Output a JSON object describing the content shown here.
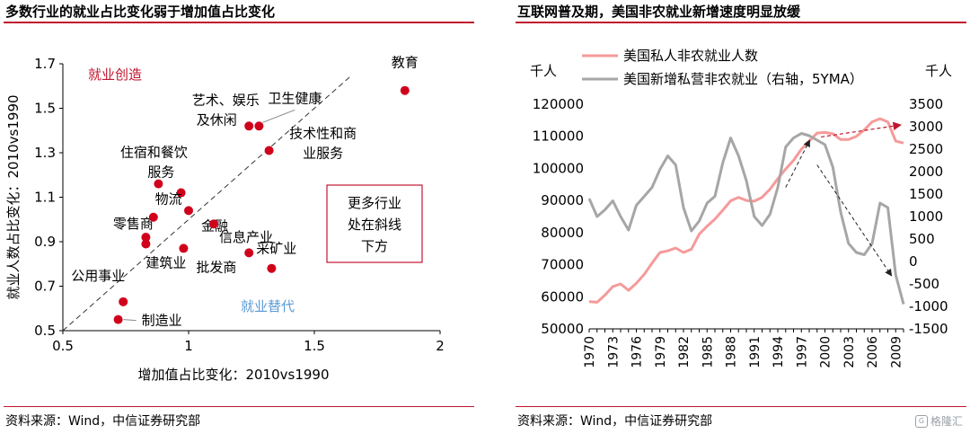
{
  "left_panel": {
    "title": "多数行业的就业占比变化弱于增加值占比变化",
    "source": "资料来源：Wind，中信证券研究部"
  },
  "right_panel": {
    "title": "互联网普及期，美国非农就业新增速度明显放缓",
    "source": "资料来源：Wind，中信证券研究部"
  },
  "watermark": {
    "text": "格隆汇",
    "icon": "gelonghui-logo-icon"
  },
  "colors": {
    "accent": "#c0162f",
    "point": "#d0021b",
    "pink": "#f59a9a",
    "gray": "#a6a6a6"
  },
  "chart_data": [
    {
      "type": "scatter",
      "xlabel": "增加值占比变化：2010vs1990",
      "ylabel": "就业人数占比变化：2010vs1990",
      "xlim": [
        0.5,
        2
      ],
      "ylim": [
        0.5,
        1.7
      ],
      "xticks": [
        "0.5",
        "1",
        "1.5",
        "2"
      ],
      "yticks": [
        "0.5",
        "0.7",
        "0.9",
        "1.1",
        "1.3",
        "1.5",
        "1.7"
      ],
      "reference_line": "y = x (dashed)",
      "points": [
        {
          "label": "教育",
          "x": 1.86,
          "y": 1.58
        },
        {
          "label": "卫生健康",
          "x": 1.28,
          "y": 1.42
        },
        {
          "label": "艺术、娱乐及休闲",
          "x": 1.24,
          "y": 1.42
        },
        {
          "label": "技术性和商业服务",
          "x": 1.32,
          "y": 1.31
        },
        {
          "label": "住宿和餐饮服务",
          "x": 0.88,
          "y": 1.16
        },
        {
          "label": "物流",
          "x": 0.97,
          "y": 1.12
        },
        {
          "label": "金融",
          "x": 1.0,
          "y": 1.04
        },
        {
          "label": "零售商",
          "x": 0.83,
          "y": 0.92
        },
        {
          "label": "建筑业",
          "x": 0.83,
          "y": 0.89
        },
        {
          "label": "批发商",
          "x": 0.98,
          "y": 0.87
        },
        {
          "label": "信息产业",
          "x": 1.1,
          "y": 0.98
        },
        {
          "label": "采矿业",
          "x": 1.24,
          "y": 0.85
        },
        {
          "label": "",
          "x": 1.33,
          "y": 0.78
        },
        {
          "label": "公用事业",
          "x": 0.74,
          "y": 0.63
        },
        {
          "label": "制造业",
          "x": 0.72,
          "y": 0.55
        },
        {
          "label": "",
          "x": 0.86,
          "y": 1.01
        }
      ],
      "annotations": {
        "upper": "就业创造",
        "lower": "就业替代",
        "box": [
          "更多行业",
          "处在斜线",
          "下方"
        ]
      }
    },
    {
      "type": "line",
      "left_unit": "千人",
      "right_unit": "千人",
      "ylim_left": [
        50000,
        120000
      ],
      "ylim_right": [
        -1500,
        3500
      ],
      "yticks_left": [
        "50000",
        "60000",
        "70000",
        "80000",
        "90000",
        "100000",
        "110000",
        "120000"
      ],
      "yticks_right": [
        "-1500",
        "-1000",
        "-500",
        "0",
        "500",
        "1000",
        "1500",
        "2000",
        "2500",
        "3000",
        "3500"
      ],
      "xticks": [
        "1970",
        "1973",
        "1976",
        "1979",
        "1982",
        "1985",
        "1988",
        "1991",
        "1994",
        "1997",
        "2000",
        "2003",
        "2006",
        "2009"
      ],
      "xlim": [
        1970,
        2010
      ],
      "series": [
        {
          "name": "美国私人非农就业人数",
          "axis": "left",
          "color": "#f59a9a",
          "x": [
            1970,
            1971,
            1972,
            1973,
            1974,
            1975,
            1976,
            1977,
            1978,
            1979,
            1980,
            1981,
            1982,
            1983,
            1984,
            1985,
            1986,
            1987,
            1988,
            1989,
            1990,
            1991,
            1992,
            1993,
            1994,
            1995,
            1996,
            1997,
            1998,
            1999,
            2000,
            2001,
            2002,
            2003,
            2004,
            2005,
            2006,
            2007,
            2008,
            2009,
            2010
          ],
          "values": [
            58500,
            58300,
            60500,
            63200,
            64000,
            62000,
            64200,
            67000,
            70500,
            73800,
            74300,
            75200,
            73800,
            74800,
            79500,
            82000,
            84200,
            87000,
            89900,
            91000,
            90000,
            89800,
            91000,
            93500,
            96800,
            99800,
            102500,
            106000,
            108500,
            111000,
            111200,
            110800,
            109000,
            109000,
            110000,
            112000,
            114500,
            115500,
            114500,
            108500,
            107900
          ]
        },
        {
          "name": "美国新增私营非农就业（右轴，5YMA）",
          "axis": "right",
          "color": "#a6a6a6",
          "x": [
            1970,
            1971,
            1972,
            1973,
            1974,
            1975,
            1976,
            1977,
            1978,
            1979,
            1980,
            1981,
            1982,
            1983,
            1984,
            1985,
            1986,
            1987,
            1988,
            1989,
            1990,
            1991,
            1992,
            1993,
            1994,
            1995,
            1996,
            1997,
            1998,
            1999,
            2000,
            2001,
            2002,
            2003,
            2004,
            2005,
            2006,
            2007,
            2008,
            2009,
            2010
          ],
          "values": [
            1400,
            1000,
            1150,
            1350,
            1000,
            700,
            1250,
            1450,
            1650,
            2050,
            2350,
            2150,
            1200,
            680,
            900,
            1300,
            1450,
            2200,
            2750,
            2350,
            1800,
            1000,
            800,
            1050,
            1650,
            2550,
            2750,
            2850,
            2800,
            2700,
            2600,
            2100,
            1100,
            400,
            200,
            150,
            400,
            1300,
            1200,
            -300,
            -950
          ]
        }
      ],
      "trend_arrows": "dashed arrows: rising employment growth in 1990s, sharp decline after 2000, employment count plateau after 2000"
    }
  ]
}
